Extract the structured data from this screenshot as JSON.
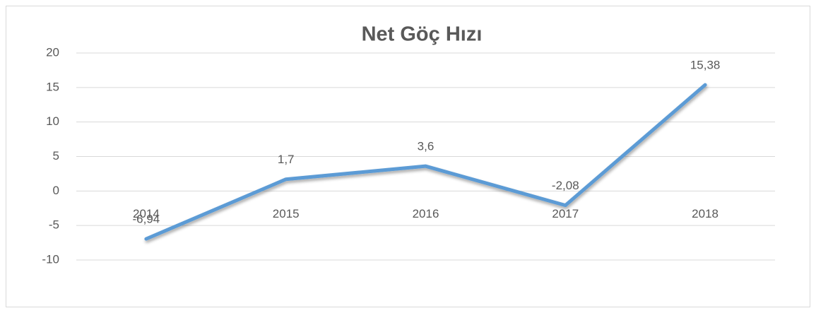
{
  "chart_data": {
    "type": "line",
    "title": "Net Göç Hızı",
    "categories": [
      "2014",
      "2015",
      "2016",
      "2017",
      "2018"
    ],
    "series": [
      {
        "name": "Net Göç Hızı",
        "color": "#5b9bd5",
        "values": [
          -6.94,
          1.7,
          3.6,
          -2.08,
          15.38
        ],
        "value_labels": [
          "-6,94",
          "1,7",
          "3,6",
          "-2,08",
          "15,38"
        ]
      }
    ],
    "ylim": [
      -10,
      20
    ],
    "yticks": [
      -10,
      -5,
      0,
      5,
      10,
      15,
      20
    ],
    "grid": true
  }
}
